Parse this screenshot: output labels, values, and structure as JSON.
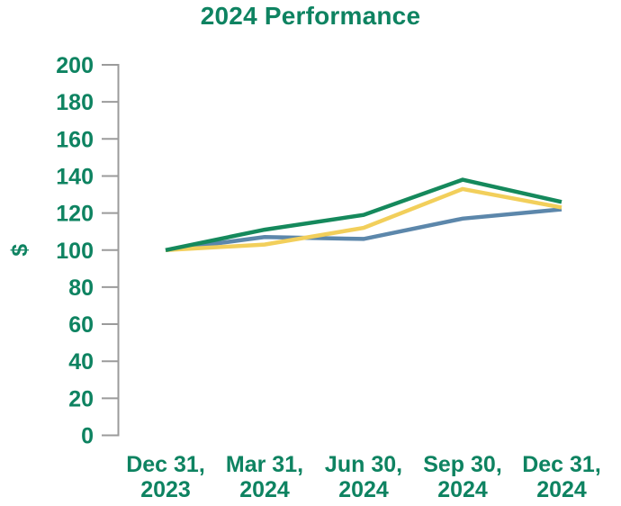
{
  "title": "2024 Performance",
  "colors": {
    "text_green": "#0E8361",
    "axis_gray": "#9B9B9B"
  },
  "chart_data": {
    "type": "line",
    "title": "2024 Performance",
    "xlabel": "",
    "ylabel": "$",
    "ylim": [
      0,
      200
    ],
    "ytick_step": 20,
    "grid": false,
    "legend": false,
    "categories": [
      [
        "Dec 31,",
        "2023"
      ],
      [
        "Mar 31,",
        "2024"
      ],
      [
        "Jun 30,",
        "2024"
      ],
      [
        "Sep 30,",
        "2024"
      ],
      [
        "Dec 31,",
        "2024"
      ]
    ],
    "series": [
      {
        "name": "green-line",
        "color": "#15895C",
        "values": [
          100,
          111,
          119,
          138,
          126
        ]
      },
      {
        "name": "yellow-line",
        "color": "#F2CF5B",
        "values": [
          100,
          103,
          112,
          133,
          123
        ]
      },
      {
        "name": "blue-line",
        "color": "#5C87AB",
        "values": [
          100,
          107,
          106,
          117,
          122
        ]
      }
    ]
  }
}
